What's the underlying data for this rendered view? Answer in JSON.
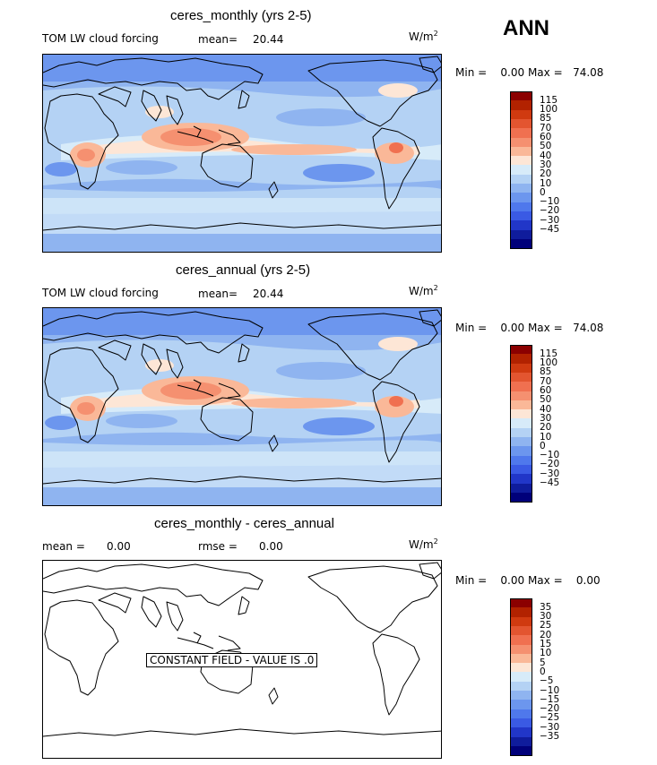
{
  "season": "ANN",
  "units": {
    "base": "W/m",
    "exp": "2"
  },
  "panels": [
    {
      "title": "ceres_monthly (yrs 2-5)",
      "variable": "TOM LW cloud forcing",
      "mean_label": "mean=",
      "mean_value": "20.44",
      "min_max": "Min =    0.00 Max =   74.08"
    },
    {
      "title": "ceres_annual (yrs 2-5)",
      "variable": "TOM LW cloud forcing",
      "mean_label": "mean=",
      "mean_value": "20.44",
      "min_max": "Min =    0.00 Max =   74.08"
    },
    {
      "title": "ceres_monthly - ceres_annual",
      "mean_label": "mean =",
      "mean_value": "0.00",
      "rmse_label": "rmse =",
      "rmse_value": "0.00",
      "min_max": "Min =    0.00 Max =    0.00",
      "constant_note": "CONSTANT FIELD - VALUE IS .0"
    }
  ],
  "colorbars": {
    "field": {
      "colors": [
        "#8b0000",
        "#b22200",
        "#d03a10",
        "#e35530",
        "#f07050",
        "#f59070",
        "#fab898",
        "#fde6d6",
        "#d7ebf9",
        "#b4d2f4",
        "#8fb4f0",
        "#6c96ee",
        "#4f78ec",
        "#3a5ae4",
        "#2136c8",
        "#0f1c9c",
        "#00007a"
      ],
      "ticks": [
        "115",
        "100",
        "85",
        "70",
        "60",
        "50",
        "40",
        "30",
        "20",
        "10",
        "0",
        "−10",
        "−20",
        "−30",
        "−45"
      ]
    },
    "diff": {
      "colors": [
        "#8b0000",
        "#b22200",
        "#d03a10",
        "#e35530",
        "#f07050",
        "#f59070",
        "#fab898",
        "#fde6d6",
        "#d7ebf9",
        "#b4d2f4",
        "#8fb4f0",
        "#6c96ee",
        "#4f78ec",
        "#3a5ae4",
        "#2136c8",
        "#0f1c9c",
        "#00007a"
      ],
      "ticks": [
        "35",
        "30",
        "25",
        "20",
        "15",
        "10",
        "5",
        "0",
        "−5",
        "−10",
        "−15",
        "−20",
        "−25",
        "−30",
        "−35"
      ]
    }
  },
  "chart_data": [
    {
      "type": "heatmap",
      "title": "ceres_monthly (yrs 2-5)",
      "subtitle": "TOM LW cloud forcing",
      "units": "W/m2",
      "mean": 20.44,
      "min": 0.0,
      "max": 74.08,
      "contour_levels": [
        -45,
        -30,
        -20,
        -10,
        0,
        10,
        20,
        30,
        40,
        50,
        60,
        70,
        85,
        100,
        115
      ]
    },
    {
      "type": "heatmap",
      "title": "ceres_annual (yrs 2-5)",
      "subtitle": "TOM LW cloud forcing",
      "units": "W/m2",
      "mean": 20.44,
      "min": 0.0,
      "max": 74.08,
      "contour_levels": [
        -45,
        -30,
        -20,
        -10,
        0,
        10,
        20,
        30,
        40,
        50,
        60,
        70,
        85,
        100,
        115
      ]
    },
    {
      "type": "heatmap",
      "title": "ceres_monthly - ceres_annual",
      "units": "W/m2",
      "mean": 0.0,
      "rmse": 0.0,
      "min": 0.0,
      "max": 0.0,
      "constant_value": 0,
      "contour_levels": [
        -35,
        -30,
        -25,
        -20,
        -15,
        -10,
        -5,
        0,
        5,
        10,
        15,
        20,
        25,
        30,
        35
      ]
    }
  ]
}
